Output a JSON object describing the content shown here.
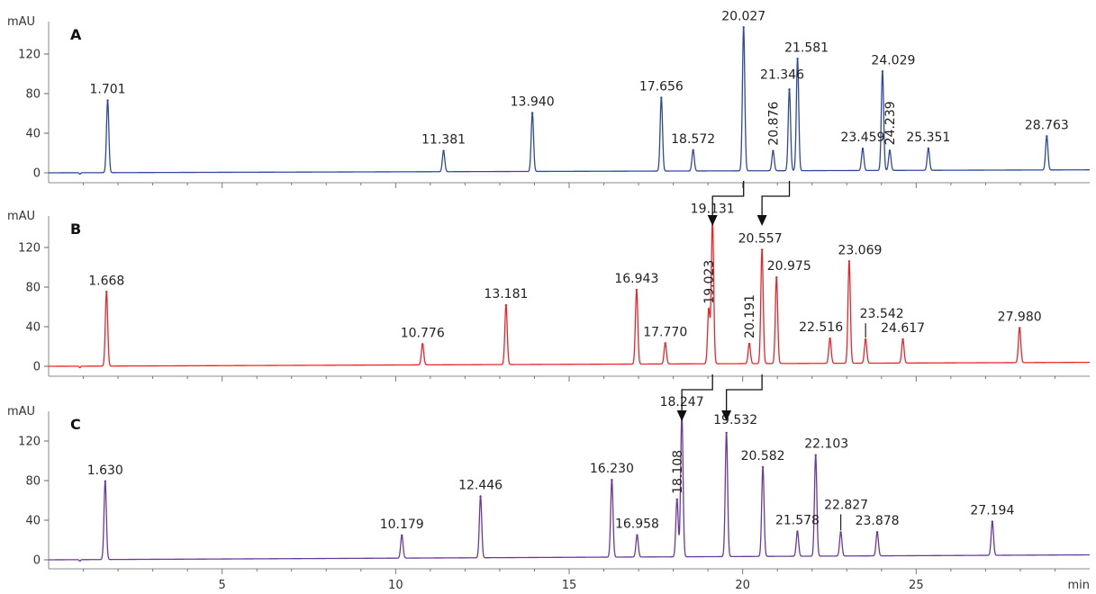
{
  "chart_data": {
    "type": "line",
    "chart_kind": "stacked chromatograms",
    "x_unit_label": "min",
    "x_range": [
      0,
      30
    ],
    "x_ticks": [
      5,
      10,
      15,
      20,
      25
    ],
    "y_unit_label": "mAU",
    "y_range": [
      -5,
      165
    ],
    "y_ticks": [
      0,
      40,
      80,
      120
    ],
    "grid": false,
    "panels": [
      {
        "id": "A",
        "color": "#2e4a9e",
        "baseline_drift_end": 3,
        "peaks": [
          {
            "rt": 1.701,
            "height": 73,
            "label": "1.701"
          },
          {
            "rt": 11.381,
            "height": 21,
            "label": "11.381"
          },
          {
            "rt": 13.94,
            "height": 59,
            "label": "13.940"
          },
          {
            "rt": 17.656,
            "height": 74,
            "label": "17.656"
          },
          {
            "rt": 18.572,
            "height": 21,
            "label": "18.572"
          },
          {
            "rt": 20.027,
            "height": 145,
            "label": "20.027"
          },
          {
            "rt": 20.876,
            "height": 20,
            "label": "20.876"
          },
          {
            "rt": 21.346,
            "height": 82,
            "label": "21.346"
          },
          {
            "rt": 21.581,
            "height": 113,
            "label": "21.581"
          },
          {
            "rt": 23.459,
            "height": 22,
            "label": "23.459"
          },
          {
            "rt": 24.029,
            "height": 100,
            "label": "24.029"
          },
          {
            "rt": 24.239,
            "height": 20,
            "label": "24.239"
          },
          {
            "rt": 25.351,
            "height": 22,
            "label": "25.351"
          },
          {
            "rt": 28.763,
            "height": 34,
            "label": "28.763"
          }
        ]
      },
      {
        "id": "B",
        "color": "#e8262a",
        "baseline_drift_end": 4,
        "peaks": [
          {
            "rt": 1.668,
            "height": 75,
            "label": "1.668"
          },
          {
            "rt": 10.776,
            "height": 21,
            "label": "10.776"
          },
          {
            "rt": 13.181,
            "height": 60,
            "label": "13.181"
          },
          {
            "rt": 16.943,
            "height": 75,
            "label": "16.943"
          },
          {
            "rt": 17.77,
            "height": 21,
            "label": "17.770"
          },
          {
            "rt": 19.023,
            "height": 55,
            "label": "19.023"
          },
          {
            "rt": 19.131,
            "height": 145,
            "label": "19.131"
          },
          {
            "rt": 20.191,
            "height": 20,
            "label": "20.191"
          },
          {
            "rt": 20.557,
            "height": 115,
            "label": "20.557"
          },
          {
            "rt": 20.975,
            "height": 87,
            "label": "20.975"
          },
          {
            "rt": 22.516,
            "height": 25,
            "label": "22.516"
          },
          {
            "rt": 23.069,
            "height": 103,
            "label": "23.069"
          },
          {
            "rt": 23.542,
            "height": 24,
            "label": "23.542"
          },
          {
            "rt": 24.617,
            "height": 24,
            "label": "24.617"
          },
          {
            "rt": 27.98,
            "height": 35,
            "label": "27.980"
          }
        ]
      },
      {
        "id": "C",
        "color": "#6a3a9a",
        "baseline_drift_end": 5,
        "peaks": [
          {
            "rt": 1.63,
            "height": 79,
            "label": "1.630"
          },
          {
            "rt": 10.179,
            "height": 23,
            "label": "10.179"
          },
          {
            "rt": 12.446,
            "height": 62,
            "label": "12.446"
          },
          {
            "rt": 16.23,
            "height": 78,
            "label": "16.230"
          },
          {
            "rt": 16.958,
            "height": 22,
            "label": "16.958"
          },
          {
            "rt": 18.108,
            "height": 58,
            "label": "18.108"
          },
          {
            "rt": 18.247,
            "height": 145,
            "label": "18.247"
          },
          {
            "rt": 19.532,
            "height": 125,
            "label": "19.532"
          },
          {
            "rt": 20.582,
            "height": 90,
            "label": "20.582"
          },
          {
            "rt": 21.578,
            "height": 25,
            "label": "21.578"
          },
          {
            "rt": 22.103,
            "height": 102,
            "label": "22.103"
          },
          {
            "rt": 22.827,
            "height": 24,
            "label": "22.827"
          },
          {
            "rt": 23.878,
            "height": 24,
            "label": "23.878"
          },
          {
            "rt": 27.194,
            "height": 34,
            "label": "27.194"
          }
        ]
      }
    ],
    "shift_arrows": [
      {
        "from_panel": "A",
        "from_rt": 20.027,
        "to_panel": "B",
        "to_rt": 19.131
      },
      {
        "from_panel": "A",
        "from_rt": 21.346,
        "to_panel": "B",
        "to_rt": 20.557
      },
      {
        "from_panel": "B",
        "from_rt": 19.131,
        "to_panel": "C",
        "to_rt": 18.247
      },
      {
        "from_panel": "B",
        "from_rt": 20.557,
        "to_panel": "C",
        "to_rt": 19.532
      }
    ]
  }
}
